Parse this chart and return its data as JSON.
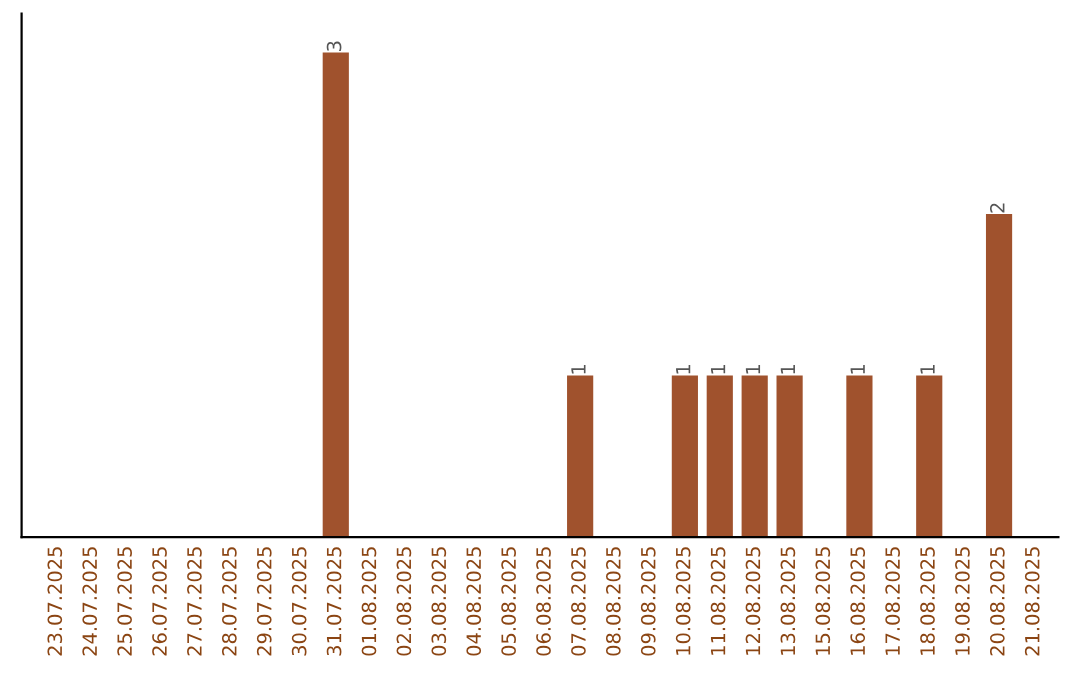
{
  "chart_data": {
    "type": "bar",
    "categories": [
      "23.07.2025",
      "24.07.2025",
      "25.07.2025",
      "26.07.2025",
      "27.07.2025",
      "28.07.2025",
      "29.07.2025",
      "30.07.2025",
      "31.07.2025",
      "01.08.2025",
      "02.08.2025",
      "03.08.2025",
      "04.08.2025",
      "05.08.2025",
      "06.08.2025",
      "07.08.2025",
      "08.08.2025",
      "09.08.2025",
      "10.08.2025",
      "11.08.2025",
      "12.08.2025",
      "13.08.2025",
      "15.08.2025",
      "16.08.2025",
      "17.08.2025",
      "18.08.2025",
      "19.08.2025",
      "20.08.2025",
      "21.08.2025"
    ],
    "values": [
      0,
      0,
      0,
      0,
      0,
      0,
      0,
      0,
      3,
      0,
      0,
      0,
      0,
      0,
      0,
      1,
      0,
      0,
      1,
      1,
      1,
      1,
      0,
      1,
      0,
      1,
      0,
      2,
      0
    ],
    "value_labels": [
      null,
      null,
      null,
      null,
      null,
      null,
      null,
      null,
      "3",
      null,
      null,
      null,
      null,
      null,
      null,
      "1",
      null,
      null,
      "1",
      "1",
      "1",
      "1",
      null,
      "1",
      null,
      "1",
      null,
      "2",
      null
    ],
    "color": "#a0522d",
    "grid": false,
    "legend": false
  }
}
